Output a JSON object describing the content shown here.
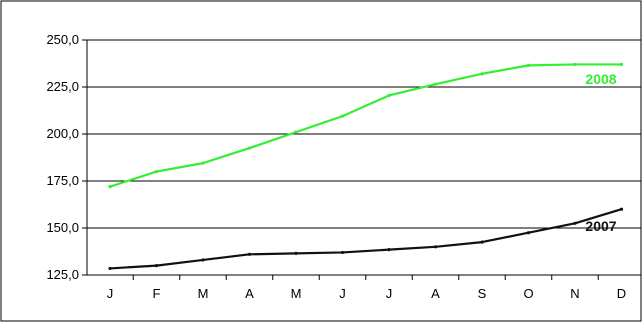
{
  "chart_data": {
    "type": "line",
    "title": "",
    "xlabel": "",
    "ylabel": "",
    "categories": [
      "J",
      "F",
      "M",
      "A",
      "M",
      "J",
      "J",
      "A",
      "S",
      "O",
      "N",
      "D"
    ],
    "ylim": [
      125,
      250
    ],
    "yticks": [
      125,
      150,
      175,
      200,
      225,
      250
    ],
    "ytick_labels": [
      "125,0",
      "150,0",
      "175,0",
      "200,0",
      "225,0",
      "250,0"
    ],
    "grid": "horizontal",
    "legend": "inline-labels",
    "series": [
      {
        "name": "2007",
        "color": "#111111",
        "values": [
          128.5,
          130,
          133,
          136,
          136.5,
          137,
          138.5,
          140,
          142.5,
          147.5,
          152.5,
          160
        ]
      },
      {
        "name": "2008",
        "color": "#33ee33",
        "values": [
          172,
          180,
          184.5,
          192.5,
          201,
          209.5,
          220.5,
          226.5,
          232,
          236.5,
          237,
          237
        ]
      }
    ]
  }
}
